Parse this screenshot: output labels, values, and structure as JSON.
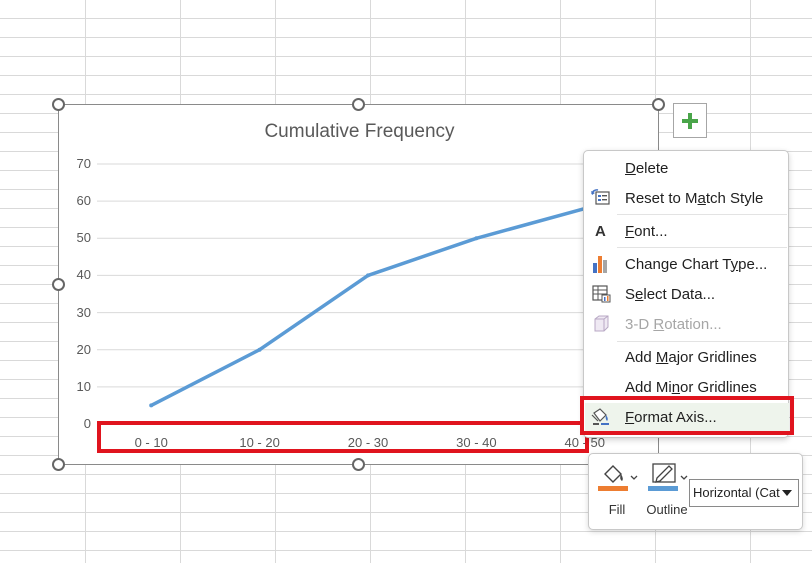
{
  "chart_data": {
    "type": "line",
    "title": "Cumulative Frequency",
    "categories": [
      "0 - 10",
      "10 - 20",
      "20 - 30",
      "30 - 40",
      "40 - 50"
    ],
    "values": [
      5,
      20,
      40,
      50,
      58
    ],
    "yticks": [
      "0",
      "10",
      "20",
      "30",
      "40",
      "50",
      "60",
      "70"
    ],
    "ylim": [
      0,
      70
    ],
    "grid": true,
    "line_color": "#5b9bd5"
  },
  "chart_add_button": {
    "icon": "plus-icon",
    "color": "#4aa54a"
  },
  "context_menu": {
    "items": [
      {
        "label_pre": "",
        "key": "D",
        "label_post": "elete",
        "icon": "",
        "disabled": false
      },
      {
        "label_pre": "Reset to M",
        "key": "a",
        "label_post": "tch Style",
        "icon": "reset-style-icon",
        "disabled": false
      },
      {
        "label_pre": "",
        "key": "F",
        "label_post": "ont...",
        "icon": "font-icon",
        "disabled": false
      },
      {
        "label_pre": "Change Chart T",
        "key": "y",
        "label_post": "pe...",
        "icon": "chart-type-icon",
        "disabled": false
      },
      {
        "label_pre": "S",
        "key": "e",
        "label_post": "lect Data...",
        "icon": "select-data-icon",
        "disabled": false
      },
      {
        "label_pre": "3-D ",
        "key": "R",
        "label_post": "otation...",
        "icon": "3d-rotation-icon",
        "disabled": true
      },
      {
        "label_pre": "Add ",
        "key": "M",
        "label_post": "ajor Gridlines",
        "icon": "",
        "disabled": false
      },
      {
        "label_pre": "Add Mi",
        "key": "n",
        "label_post": "or Gridlines",
        "icon": "",
        "disabled": false
      },
      {
        "label_pre": "",
        "key": "F",
        "label_post": "ormat Axis...",
        "icon": "format-axis-icon",
        "disabled": false
      }
    ]
  },
  "mini_toolbar": {
    "fill_label": "Fill",
    "outline_label": "Outline",
    "element_select": "Horizontal (Cat",
    "fill_color": "#ed7d31",
    "outline_color": "#5b9bd5"
  },
  "highlight_color": "#e0141e"
}
